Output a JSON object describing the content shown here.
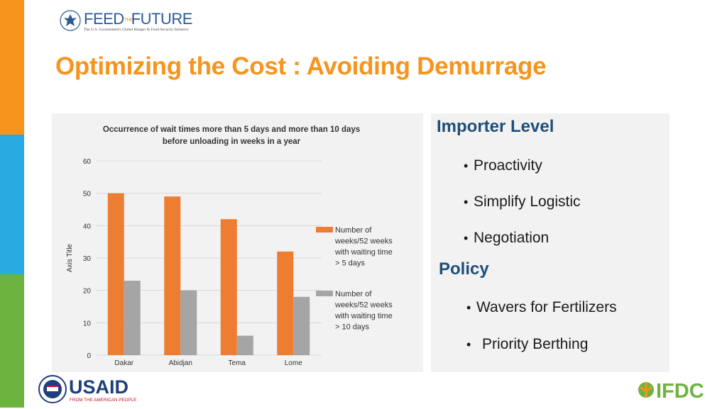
{
  "header": {
    "logo_title_left": "FEED",
    "logo_title_the": "THE",
    "logo_title_right": "FUTURE",
    "logo_tagline": "The U.S. Government's Global Hunger & Food Security Initiative"
  },
  "slide_title": "Optimizing the Cost : Avoiding Demurrage",
  "chart_data": {
    "type": "bar",
    "title_lines": [
      "Occurrence of wait times more than 5 days and more than 10 days",
      "before unloading in weeks in a year"
    ],
    "xlabel": "",
    "ylabel": "Axis Title",
    "categories": [
      "Dakar",
      "Abidjan",
      "Tema",
      "Lome"
    ],
    "ylim": [
      0,
      60
    ],
    "yticks": [
      0,
      10,
      20,
      30,
      40,
      50,
      60
    ],
    "grid": true,
    "legend_position": "right",
    "series": [
      {
        "name_lines": [
          "Number of",
          "weeks/52 weeks",
          "with waiting time",
          "> 5 days"
        ],
        "color": "#ed7d31",
        "values": [
          50,
          49,
          42,
          32
        ]
      },
      {
        "name_lines": [
          "Number of",
          "weeks/52 weeks",
          "with waiting time",
          "> 10 days"
        ],
        "color": "#a5a5a5",
        "values": [
          23,
          20,
          6,
          18
        ]
      }
    ]
  },
  "importer": {
    "heading": "Importer Level",
    "items": [
      "Proactivity",
      "Simplify Logistic",
      "Negotiation"
    ]
  },
  "policy": {
    "heading": "Policy",
    "items": [
      "Wavers for Fertilizers",
      "Priority Berthing"
    ]
  },
  "footer": {
    "usaid_name": "USAID",
    "usaid_tagline": "FROM THE AMERICAN PEOPLE",
    "ifdc_name": "IFDC"
  },
  "colors": {
    "accent_orange": "#f7941d",
    "accent_blue": "#29abe2",
    "accent_green": "#6db33f",
    "heading_blue": "#1f4e79"
  }
}
